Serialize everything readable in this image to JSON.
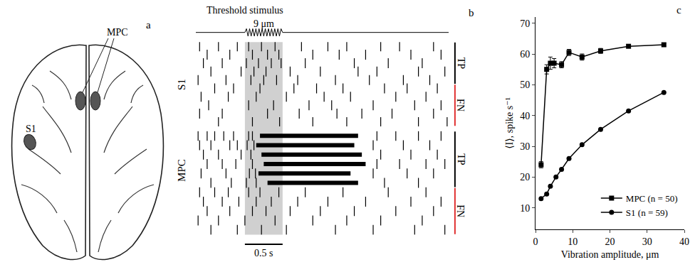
{
  "figure_a": {
    "letter": "a",
    "mpc_label": "MPC",
    "s1_label": "S1"
  },
  "chart_data": [
    {
      "type": "raster",
      "letter": "b",
      "title": "Threshold stimulus",
      "stimulus_label": "9 μm",
      "stimulus": [
        0,
        0.5
      ],
      "xlim": [
        -0.65,
        2.7
      ],
      "tick_labels": false,
      "scale_bar": {
        "value": 0.5,
        "label": "0.5 s"
      },
      "groups": [
        {
          "name": "S1",
          "bands": [
            {
              "label": "TP",
              "color": "#000000",
              "rows": [
                {
                  "spikes": [
                    -0.6,
                    -0.35,
                    -0.1,
                    0.05,
                    0.22,
                    0.4,
                    0.75,
                    1.1,
                    1.35,
                    1.8,
                    2.05,
                    2.5
                  ]
                },
                {
                  "spikes": [
                    -0.5,
                    -0.2,
                    0.1,
                    0.3,
                    0.45,
                    0.9,
                    1.25,
                    1.6,
                    2.2,
                    2.6
                  ]
                },
                {
                  "spikes": [
                    -0.55,
                    -0.3,
                    0.02,
                    0.18,
                    0.35,
                    0.48,
                    0.8,
                    1.45,
                    1.9,
                    2.35
                  ]
                },
                {
                  "spikes": [
                    -0.45,
                    -0.05,
                    0.12,
                    0.28,
                    0.6,
                    1.0,
                    1.5,
                    1.75,
                    2.3,
                    2.65
                  ]
                },
                {
                  "spikes": [
                    -0.62,
                    -0.25,
                    0.08,
                    0.25,
                    0.42,
                    0.7,
                    1.2,
                    1.65,
                    2.1,
                    2.45
                  ]
                }
              ]
            },
            {
              "label": "FN",
              "color": "#e03030",
              "rows": [
                {
                  "spikes": [
                    -0.4,
                    -0.15,
                    0.2,
                    0.65,
                    0.95,
                    1.3,
                    1.85,
                    2.15,
                    2.55
                  ]
                },
                {
                  "spikes": [
                    -0.58,
                    -0.22,
                    0.15,
                    0.55,
                    1.05,
                    1.4,
                    2.0,
                    2.4
                  ]
                },
                {
                  "spikes": [
                    -0.48,
                    0.05,
                    0.38,
                    0.85,
                    1.15,
                    1.7,
                    2.25,
                    2.6
                  ]
                },
                {
                  "spikes": [
                    -0.6,
                    -0.3,
                    0.3,
                    0.72,
                    1.22,
                    1.55,
                    1.95,
                    2.5
                  ]
                },
                {
                  "spikes": [
                    -0.35,
                    0.1,
                    0.46,
                    0.9,
                    1.35,
                    1.8,
                    2.3,
                    2.68
                  ]
                }
              ]
            }
          ]
        },
        {
          "name": "MPC",
          "bands": [
            {
              "label": "TP",
              "color": "#000000",
              "rows": [
                {
                  "spikes": [
                    -0.62,
                    -0.5,
                    -0.4,
                    -0.28,
                    -0.15,
                    0.05,
                    0.1,
                    1.75,
                    2.0,
                    2.3,
                    2.6
                  ],
                  "bursts": [
                    [
                      0.2,
                      1.5
                    ]
                  ]
                },
                {
                  "spikes": [
                    -0.6,
                    -0.45,
                    -0.2,
                    -0.1,
                    0.03,
                    0.12,
                    1.7,
                    2.1,
                    2.45
                  ],
                  "bursts": [
                    [
                      0.15,
                      1.45
                    ]
                  ]
                },
                {
                  "spikes": [
                    -0.55,
                    -0.35,
                    -0.05,
                    0.08,
                    1.8,
                    2.2,
                    2.55
                  ],
                  "bursts": [
                    [
                      0.22,
                      1.55
                    ]
                  ]
                },
                {
                  "spikes": [
                    -0.5,
                    -0.3,
                    -0.12,
                    0.1,
                    1.75,
                    2.05,
                    2.4,
                    2.65
                  ],
                  "bursts": [
                    [
                      0.25,
                      1.6
                    ]
                  ]
                },
                {
                  "spikes": [
                    -0.58,
                    -0.25,
                    0.06,
                    0.14,
                    1.7,
                    2.15,
                    2.5
                  ],
                  "bursts": [
                    [
                      0.18,
                      1.4
                    ]
                  ]
                },
                {
                  "spikes": [
                    -0.45,
                    -0.18,
                    0.02,
                    0.15,
                    1.85,
                    2.3
                  ],
                  "bursts": [
                    [
                      0.3,
                      1.5
                    ]
                  ]
                }
              ]
            },
            {
              "label": "FN",
              "color": "#e03030",
              "rows": [
                {
                  "spikes": [
                    -0.6,
                    -0.4,
                    -0.22,
                    0.05,
                    0.2,
                    0.45,
                    0.8,
                    1.3,
                    1.9,
                    2.4
                  ]
                },
                {
                  "spikes": [
                    -0.55,
                    -0.3,
                    -0.08,
                    0.15,
                    0.35,
                    0.7,
                    1.1,
                    1.6,
                    2.2,
                    2.6
                  ]
                },
                {
                  "spikes": [
                    -0.5,
                    -0.2,
                    0.1,
                    0.28,
                    0.6,
                    1.0,
                    1.45,
                    2.0,
                    2.5
                  ]
                },
                {
                  "spikes": [
                    -0.62,
                    -0.35,
                    0.0,
                    0.4,
                    0.9,
                    1.35,
                    1.8,
                    2.35
                  ]
                },
                {
                  "spikes": [
                    -0.45,
                    -0.1,
                    0.22,
                    0.55,
                    1.2,
                    1.7,
                    2.25,
                    2.65
                  ]
                }
              ]
            }
          ]
        }
      ]
    },
    {
      "type": "line",
      "letter": "c",
      "xlabel": "Vibration amplitude, μm",
      "ylabel": "⟨I⟩, spike s⁻¹",
      "xlim": [
        0,
        40
      ],
      "xticks": [
        0,
        10,
        20,
        30,
        40
      ],
      "ylim": [
        3,
        72
      ],
      "yticks": [
        10,
        20,
        30,
        40,
        50,
        60,
        70
      ],
      "grid": false,
      "legend": "bottom right",
      "line_style": "solid",
      "series": [
        {
          "name": "MPC (n = 50)",
          "color": "#000000",
          "marker": "square",
          "x": [
            1.5,
            3,
            4,
            5,
            7,
            9,
            12.5,
            17.5,
            25,
            34.5
          ],
          "values": [
            24,
            55,
            57,
            57,
            56.5,
            60.5,
            59,
            61,
            62.5,
            63
          ],
          "errors": [
            1,
            1.5,
            2,
            1.5,
            1,
            1,
            1,
            0.8,
            0.5,
            0.5
          ]
        },
        {
          "name": "S1 (n = 59)",
          "color": "#000000",
          "marker": "circle",
          "x": [
            1.5,
            3,
            4,
            5.5,
            7,
            9,
            12.5,
            17.5,
            25,
            34.5
          ],
          "values": [
            13,
            14.5,
            17,
            20,
            22.5,
            26,
            30.5,
            35.5,
            41.5,
            47.5
          ]
        }
      ]
    }
  ]
}
